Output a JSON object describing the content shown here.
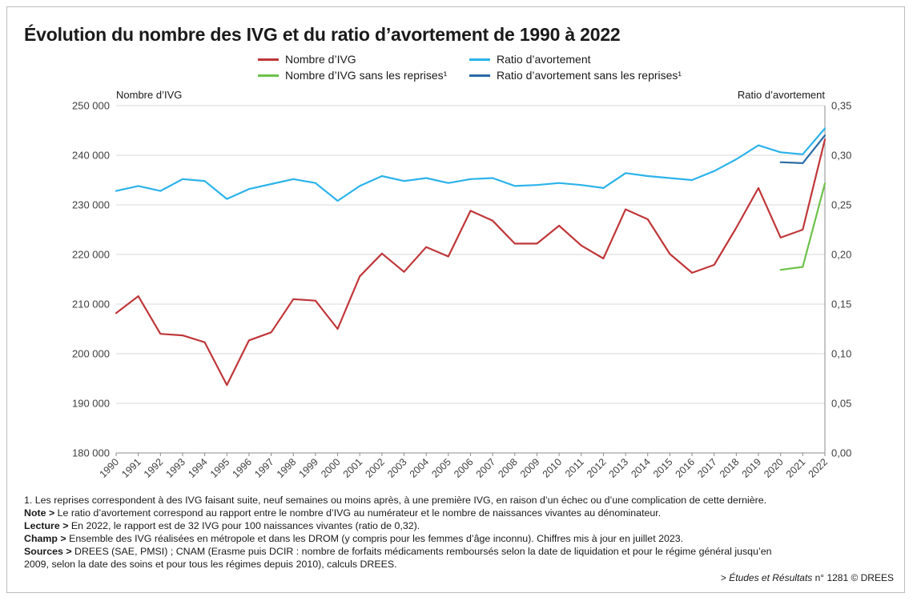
{
  "title": "Évolution du nombre des IVG et du ratio d’avortement de 1990 à 2022",
  "legend": {
    "nb_ivg": "Nombre d’IVG",
    "nb_ivg_sans": "Nombre d’IVG sans les reprises¹",
    "ratio": "Ratio d’avortement",
    "ratio_sans": "Ratio d’avortement sans les reprises¹"
  },
  "colors": {
    "nb_ivg": "#c0373a",
    "nb_ivg_sans": "#6cc24a",
    "ratio": "#2bb3ea",
    "ratio_sans": "#2a6aa6",
    "grid": "#d9d9d9",
    "axis_text": "#404040"
  },
  "chart_data": {
    "type": "line",
    "ylabel": "Nombre d’IVG",
    "y2label": "Ratio d’avortement",
    "ylim": [
      180000,
      250000
    ],
    "y2lim": [
      0,
      0.35
    ],
    "yticks": [
      "180 000",
      "190 000",
      "200 000",
      "210 000",
      "220 000",
      "230 000",
      "240 000",
      "250 000"
    ],
    "y2ticks": [
      "0,00",
      "0,05",
      "0,10",
      "0,15",
      "0,20",
      "0,25",
      "0,30",
      "0,35"
    ],
    "grid": true,
    "legend_position": "top",
    "x": [
      "1990",
      "1991",
      "1992",
      "1993",
      "1994",
      "1995",
      "1996",
      "1997",
      "1998",
      "1999",
      "2000",
      "2001",
      "2002",
      "2003",
      "2004",
      "2005",
      "2006",
      "2007",
      "2008",
      "2009",
      "2010",
      "2011",
      "2012",
      "2013",
      "2014",
      "2015",
      "2016",
      "2017",
      "2018",
      "2019",
      "2020",
      "2021",
      "2022"
    ],
    "series": [
      {
        "name": "Nombre d’IVG",
        "axis": "left",
        "values": [
          208200,
          211600,
          204000,
          203700,
          202300,
          193700,
          202700,
          204300,
          211000,
          210700,
          205000,
          215600,
          220200,
          216500,
          221500,
          219600,
          228800,
          226800,
          222200,
          222200,
          225800,
          221800,
          219200,
          229100,
          227100,
          220100,
          216300,
          217900,
          225400,
          233400,
          223400,
          225000,
          243200
        ]
      },
      {
        "name": "Nombre d’IVG sans les reprises¹",
        "axis": "left",
        "x": [
          "2020",
          "2021",
          "2022"
        ],
        "values": [
          216900,
          217500,
          234300
        ]
      },
      {
        "name": "Ratio d’avortement",
        "axis": "right",
        "values": [
          0.264,
          0.269,
          0.264,
          0.276,
          0.274,
          0.256,
          0.266,
          0.271,
          0.276,
          0.272,
          0.254,
          0.269,
          0.279,
          0.274,
          0.277,
          0.272,
          0.276,
          0.277,
          0.269,
          0.27,
          0.272,
          0.27,
          0.267,
          0.282,
          0.279,
          0.277,
          0.275,
          0.284,
          0.296,
          0.31,
          0.303,
          0.301,
          0.327
        ]
      },
      {
        "name": "Ratio d’avortement sans les reprises¹",
        "axis": "right",
        "x": [
          "2020",
          "2021",
          "2022"
        ],
        "values": [
          0.293,
          0.292,
          0.32
        ]
      }
    ]
  },
  "notes": {
    "n1": "1. Les reprises correspondent à des IVG faisant suite, neuf semaines ou moins après, à une première IVG, en raison d’un échec ou d’une complication de cette dernière.",
    "note_label": "Note >",
    "note_text": " Le ratio d’avortement correspond au rapport entre le nombre d’IVG au numérateur et le nombre de naissances vivantes au dénominateur.",
    "lecture_label": "Lecture >",
    "lecture_text": " En 2022, le rapport est de 32 IVG pour 100 naissances vivantes (ratio de 0,32).",
    "champ_label": "Champ >",
    "champ_text": " Ensemble des IVG réalisées en métropole et dans les DROM (y compris pour les femmes d’âge inconnu). Chiffres mis à jour en juillet 2023.",
    "sources_label": "Sources >",
    "sources_text": " DREES (SAE, PMSI) ; CNAM (Erasme puis DCIR : nombre de forfaits médicaments remboursés selon la date de liquidation et pour le régime général jusqu’en",
    "sources_text2": "2009, selon la date des soins et pour tous les régimes depuis 2010), calculs DREES."
  },
  "source_ref": {
    "prefix": "> ",
    "pub": "Études et Résultats",
    "suffix": " n° 1281 © DREES"
  }
}
